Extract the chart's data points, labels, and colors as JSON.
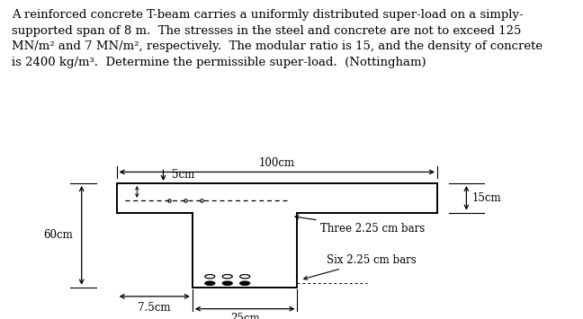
{
  "bg_color": "#ffffff",
  "line_color": "#000000",
  "text_line1": "A reinforced concrete T-beam carries a uniformly distributed super-load on a simply-",
  "text_line2": "supported span of 8 m.  The stresses in the steel and concrete are not to exceed 125",
  "text_line3": "MN/m² and 7 MN/m², respectively.  The modular ratio is 15, and the density of concrete",
  "text_line4": "is 2400 kg/m³.  Determine the permissible super-load.  (Nottingham)",
  "label_100cm": "100cm",
  "label_5cm": "5cm",
  "label_15cm": "15cm",
  "label_60cm": "60cm",
  "label_7p5cm": "7.5cm",
  "label_25cm": "25cm",
  "label_three_bars": "Three 2.25 cm bars",
  "label_six_bars": "Six 2.25 cm bars",
  "fontsize_text": 9.5,
  "fontsize_labels": 8.5
}
